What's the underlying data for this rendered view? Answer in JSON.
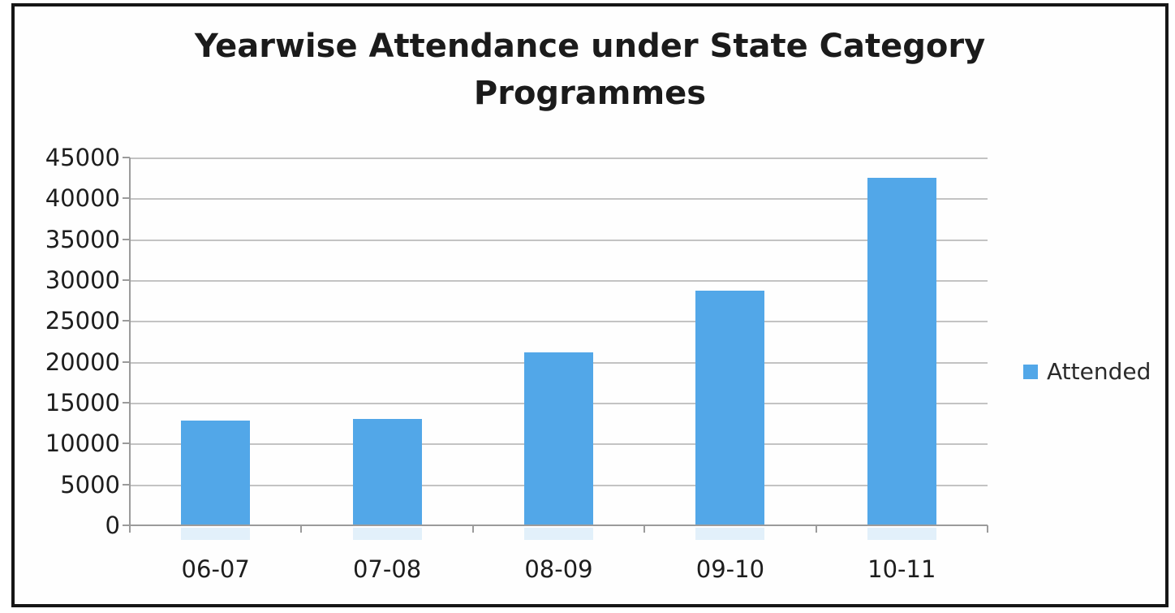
{
  "window": {
    "background_color": "#ffffff",
    "border_color": "#161616"
  },
  "chart_data": {
    "type": "bar",
    "title": "Yearwise Attendance under State Category Programmes",
    "categories": [
      "06-07",
      "07-08",
      "08-09",
      "09-10",
      "10-11"
    ],
    "series": [
      {
        "name": "Attended",
        "values": [
          12800,
          13000,
          21200,
          28700,
          42500
        ]
      }
    ],
    "xlabel": "",
    "ylabel": "",
    "ylim": [
      0,
      45000
    ],
    "yticks": [
      0,
      5000,
      10000,
      15000,
      20000,
      25000,
      30000,
      35000,
      40000,
      45000
    ],
    "grid": "horizontal gridlines on",
    "legend_position": "right-middle",
    "bar_color": "#52A7E8",
    "gridline_color": "#c3c3c3",
    "axis_color": "#9b9b9b",
    "tick_color": "#9b9b9b",
    "text_color": "#1d1d1d"
  }
}
